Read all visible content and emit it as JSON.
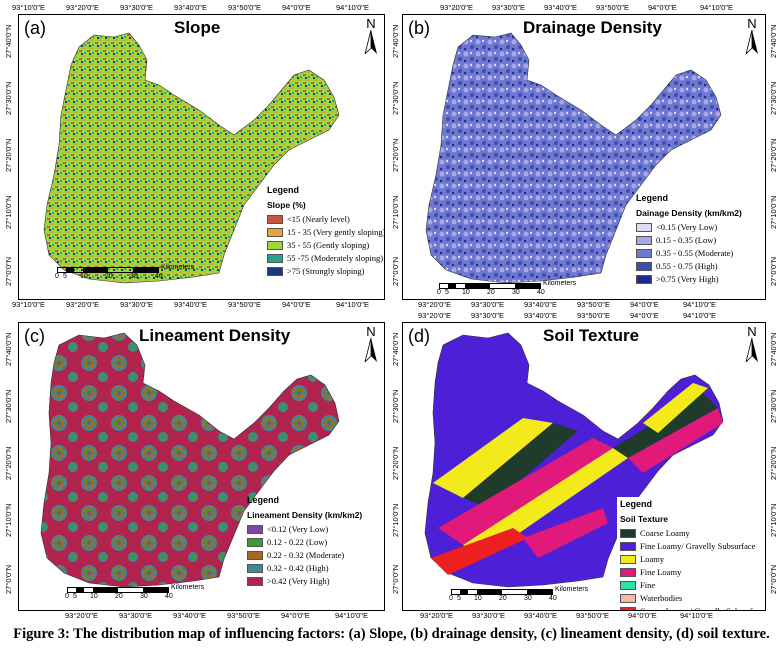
{
  "top_ticks": [
    "93°10'0\"E",
    "93°20'0\"E",
    "93°30'0\"E",
    "93°40'0\"E",
    "93°50'0\"E",
    "94°0'0\"E",
    "94°10'0\"E"
  ],
  "mid_ticks_a": [
    "93°10'0\"E",
    "93°20'0\"E",
    "93°30'0\"E",
    "93°40'0\"E",
    "93°50'0\"E",
    "94°0'0\"E",
    "94°10'0\"E"
  ],
  "mid_ticks_b": [
    "93°20'0\"E",
    "93°30'0\"E",
    "93°40'0\"E",
    "93°50'0\"E",
    "94°0'0\"E",
    "94°10'0\"E"
  ],
  "bottom_ticks_c": [
    "93°20'0\"E",
    "93°30'0\"E",
    "93°40'0\"E",
    "93°50'0\"E",
    "94°0'0\"E",
    "94°10'0\"E"
  ],
  "bottom_ticks_d": [
    "93°20'0\"E",
    "93°30'0\"E",
    "93°40'0\"E",
    "93°50'0\"E",
    "94°0'0\"E",
    "94°10'0\"E"
  ],
  "lat_ticks": [
    "27°40'0\"N",
    "27°30'0\"N",
    "27°20'0\"N",
    "27°10'0\"N",
    "27°0'0\"N"
  ],
  "north": "N",
  "scale": {
    "ticks": [
      "0",
      "5",
      "10",
      "20",
      "30",
      "40"
    ],
    "unit": "Kilometers"
  },
  "panels": {
    "a": {
      "label": "(a)",
      "title": "Slope",
      "legend_title": "Legend",
      "legend_sub": "Slope (%)",
      "items": [
        {
          "label": "<15 (Nearly level)",
          "color": "#c8553d"
        },
        {
          "label": "15 - 35 (Very gently sloping)",
          "color": "#e8a33c"
        },
        {
          "label": "35 - 55 (Gently sloping)",
          "color": "#9fd63a"
        },
        {
          "label": "55 -75 (Moderately sloping)",
          "color": "#2aa18b"
        },
        {
          "label": ">75 (Strongly sloping)",
          "color": "#17397a"
        }
      ]
    },
    "b": {
      "label": "(b)",
      "title": "Drainage Density",
      "legend_title": "Legend",
      "legend_sub": "Dainage Density (km/km2)",
      "items": [
        {
          "label": "<0.15 (Very Low)",
          "color": "#dcdcf5"
        },
        {
          "label": "0.15 - 0.35 (Low)",
          "color": "#a7a9e6"
        },
        {
          "label": "0.35 - 0.55 (Moderate)",
          "color": "#6f78d0"
        },
        {
          "label": "0.55 - 0.75 (High)",
          "color": "#3c4db3"
        },
        {
          "label": ">0.75 (Very High)",
          "color": "#1b2c8c"
        }
      ]
    },
    "c": {
      "label": "(c)",
      "title": "Lineament Density",
      "legend_title": "Legend",
      "legend_sub": "Lineament Density (km/km2)",
      "items": [
        {
          "label": "<0.12 (Very Low)",
          "color": "#7b4aa0"
        },
        {
          "label": "0.12 - 0.22 (Low)",
          "color": "#3f9a2f"
        },
        {
          "label": "0.22 - 0.32 (Moderate)",
          "color": "#a3692a"
        },
        {
          "label": "0.32 - 0.42 (High)",
          "color": "#3e8a94"
        },
        {
          "label": ">0.42 (Very High)",
          "color": "#b0244e"
        }
      ]
    },
    "d": {
      "label": "(d)",
      "title": "Soil Texture",
      "legend_title": "Legend",
      "legend_sub": "Soil Texture",
      "items": [
        {
          "label": "Coarse Loamy",
          "color": "#1f3b2c"
        },
        {
          "label": "Fine Loamy/ Gravelly Subsurface",
          "color": "#4d1fd6"
        },
        {
          "label": "Loamy",
          "color": "#f2ea1a"
        },
        {
          "label": "Fine Loamy",
          "color": "#e0197a"
        },
        {
          "label": "Fine",
          "color": "#2fe0a8"
        },
        {
          "label": "Waterbodies",
          "color": "#f4b9a0"
        },
        {
          "label": "Coarse Loamy/ Gravelly Subsurface",
          "color": "#ee1f1f"
        }
      ]
    }
  },
  "caption": "Figure 3: The distribution map of influencing factors: (a) Slope, (b) drainage density, (c) lineament density, (d) soil texture."
}
